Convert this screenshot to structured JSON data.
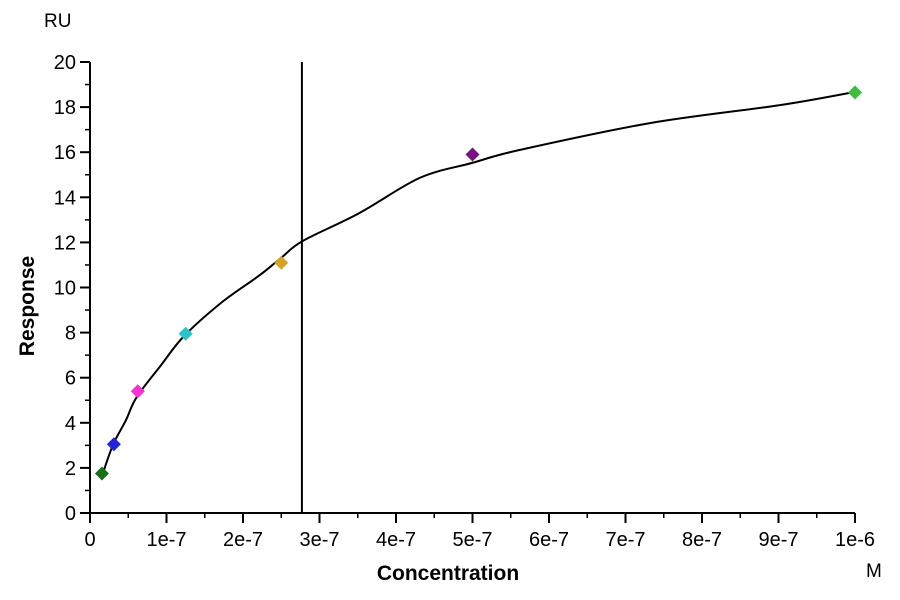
{
  "chart_data": {
    "type": "scatter",
    "title": "",
    "xlabel": "Concentration",
    "xunit": "M",
    "ylabel": "Response",
    "yunit": "RU",
    "xlim": [
      0,
      1e-06
    ],
    "ylim": [
      0,
      20
    ],
    "grid": false,
    "legend": "none",
    "x_ticks": [
      {
        "value": 0,
        "label": "0"
      },
      {
        "value": 1e-07,
        "label": "1e-7"
      },
      {
        "value": 2e-07,
        "label": "2e-7"
      },
      {
        "value": 3e-07,
        "label": "3e-7"
      },
      {
        "value": 4e-07,
        "label": "4e-7"
      },
      {
        "value": 5e-07,
        "label": "5e-7"
      },
      {
        "value": 6e-07,
        "label": "6e-7"
      },
      {
        "value": 7e-07,
        "label": "7e-7"
      },
      {
        "value": 8e-07,
        "label": "8e-7"
      },
      {
        "value": 9e-07,
        "label": "9e-7"
      },
      {
        "value": 1e-06,
        "label": "1e-6"
      }
    ],
    "x_minor_step": 5e-08,
    "y_ticks": [
      {
        "value": 0,
        "label": "0"
      },
      {
        "value": 2,
        "label": "2"
      },
      {
        "value": 4,
        "label": "4"
      },
      {
        "value": 6,
        "label": "6"
      },
      {
        "value": 8,
        "label": "8"
      },
      {
        "value": 10,
        "label": "10"
      },
      {
        "value": 12,
        "label": "12"
      },
      {
        "value": 14,
        "label": "14"
      },
      {
        "value": 16,
        "label": "16"
      },
      {
        "value": 18,
        "label": "18"
      },
      {
        "value": 20,
        "label": "20"
      }
    ],
    "y_minor_step": 1,
    "points": [
      {
        "concentration": 1.5625e-08,
        "response": 1.75,
        "color": "#1a701a",
        "name": "point-1.56e-8M"
      },
      {
        "concentration": 3.125e-08,
        "response": 3.05,
        "color": "#2222dd",
        "name": "point-3.13e-8M"
      },
      {
        "concentration": 6.25e-08,
        "response": 5.4,
        "color": "#f930d3",
        "name": "point-6.25e-8M"
      },
      {
        "concentration": 1.25e-07,
        "response": 7.95,
        "color": "#27c4c8",
        "name": "point-1.25e-7M"
      },
      {
        "concentration": 2.5e-07,
        "response": 11.1,
        "color": "#d5a226",
        "name": "point-2.5e-7M"
      },
      {
        "concentration": 5e-07,
        "response": 15.9,
        "color": "#7a1180",
        "name": "point-5e-7M"
      },
      {
        "concentration": 1e-06,
        "response": 18.65,
        "color": "#3cbd3c",
        "name": "point-1e-6M"
      }
    ],
    "fit_curve": {
      "color": "#000000",
      "points": [
        [
          1.57e-08,
          1.64
        ],
        [
          3e-08,
          3.02
        ],
        [
          4.7e-08,
          4.12
        ],
        [
          6.1e-08,
          5.14
        ],
        [
          9.3e-08,
          6.56
        ],
        [
          1.23e-07,
          7.85
        ],
        [
          1.73e-07,
          9.36
        ],
        [
          2.22e-07,
          10.55
        ],
        [
          2.51e-07,
          11.35
        ],
        [
          2.78e-07,
          12.06
        ],
        [
          3.52e-07,
          13.3
        ],
        [
          4.31e-07,
          14.86
        ],
        [
          4.99e-07,
          15.52
        ],
        [
          5.62e-07,
          16.1
        ],
        [
          7.32e-07,
          17.29
        ],
        [
          9.02e-07,
          18.09
        ],
        [
          9.99e-07,
          18.67
        ]
      ]
    },
    "kd_line": {
      "x_value": 2.77e-07,
      "color": "#000000"
    },
    "axis_color": "#000000",
    "background": "#ffffff"
  }
}
